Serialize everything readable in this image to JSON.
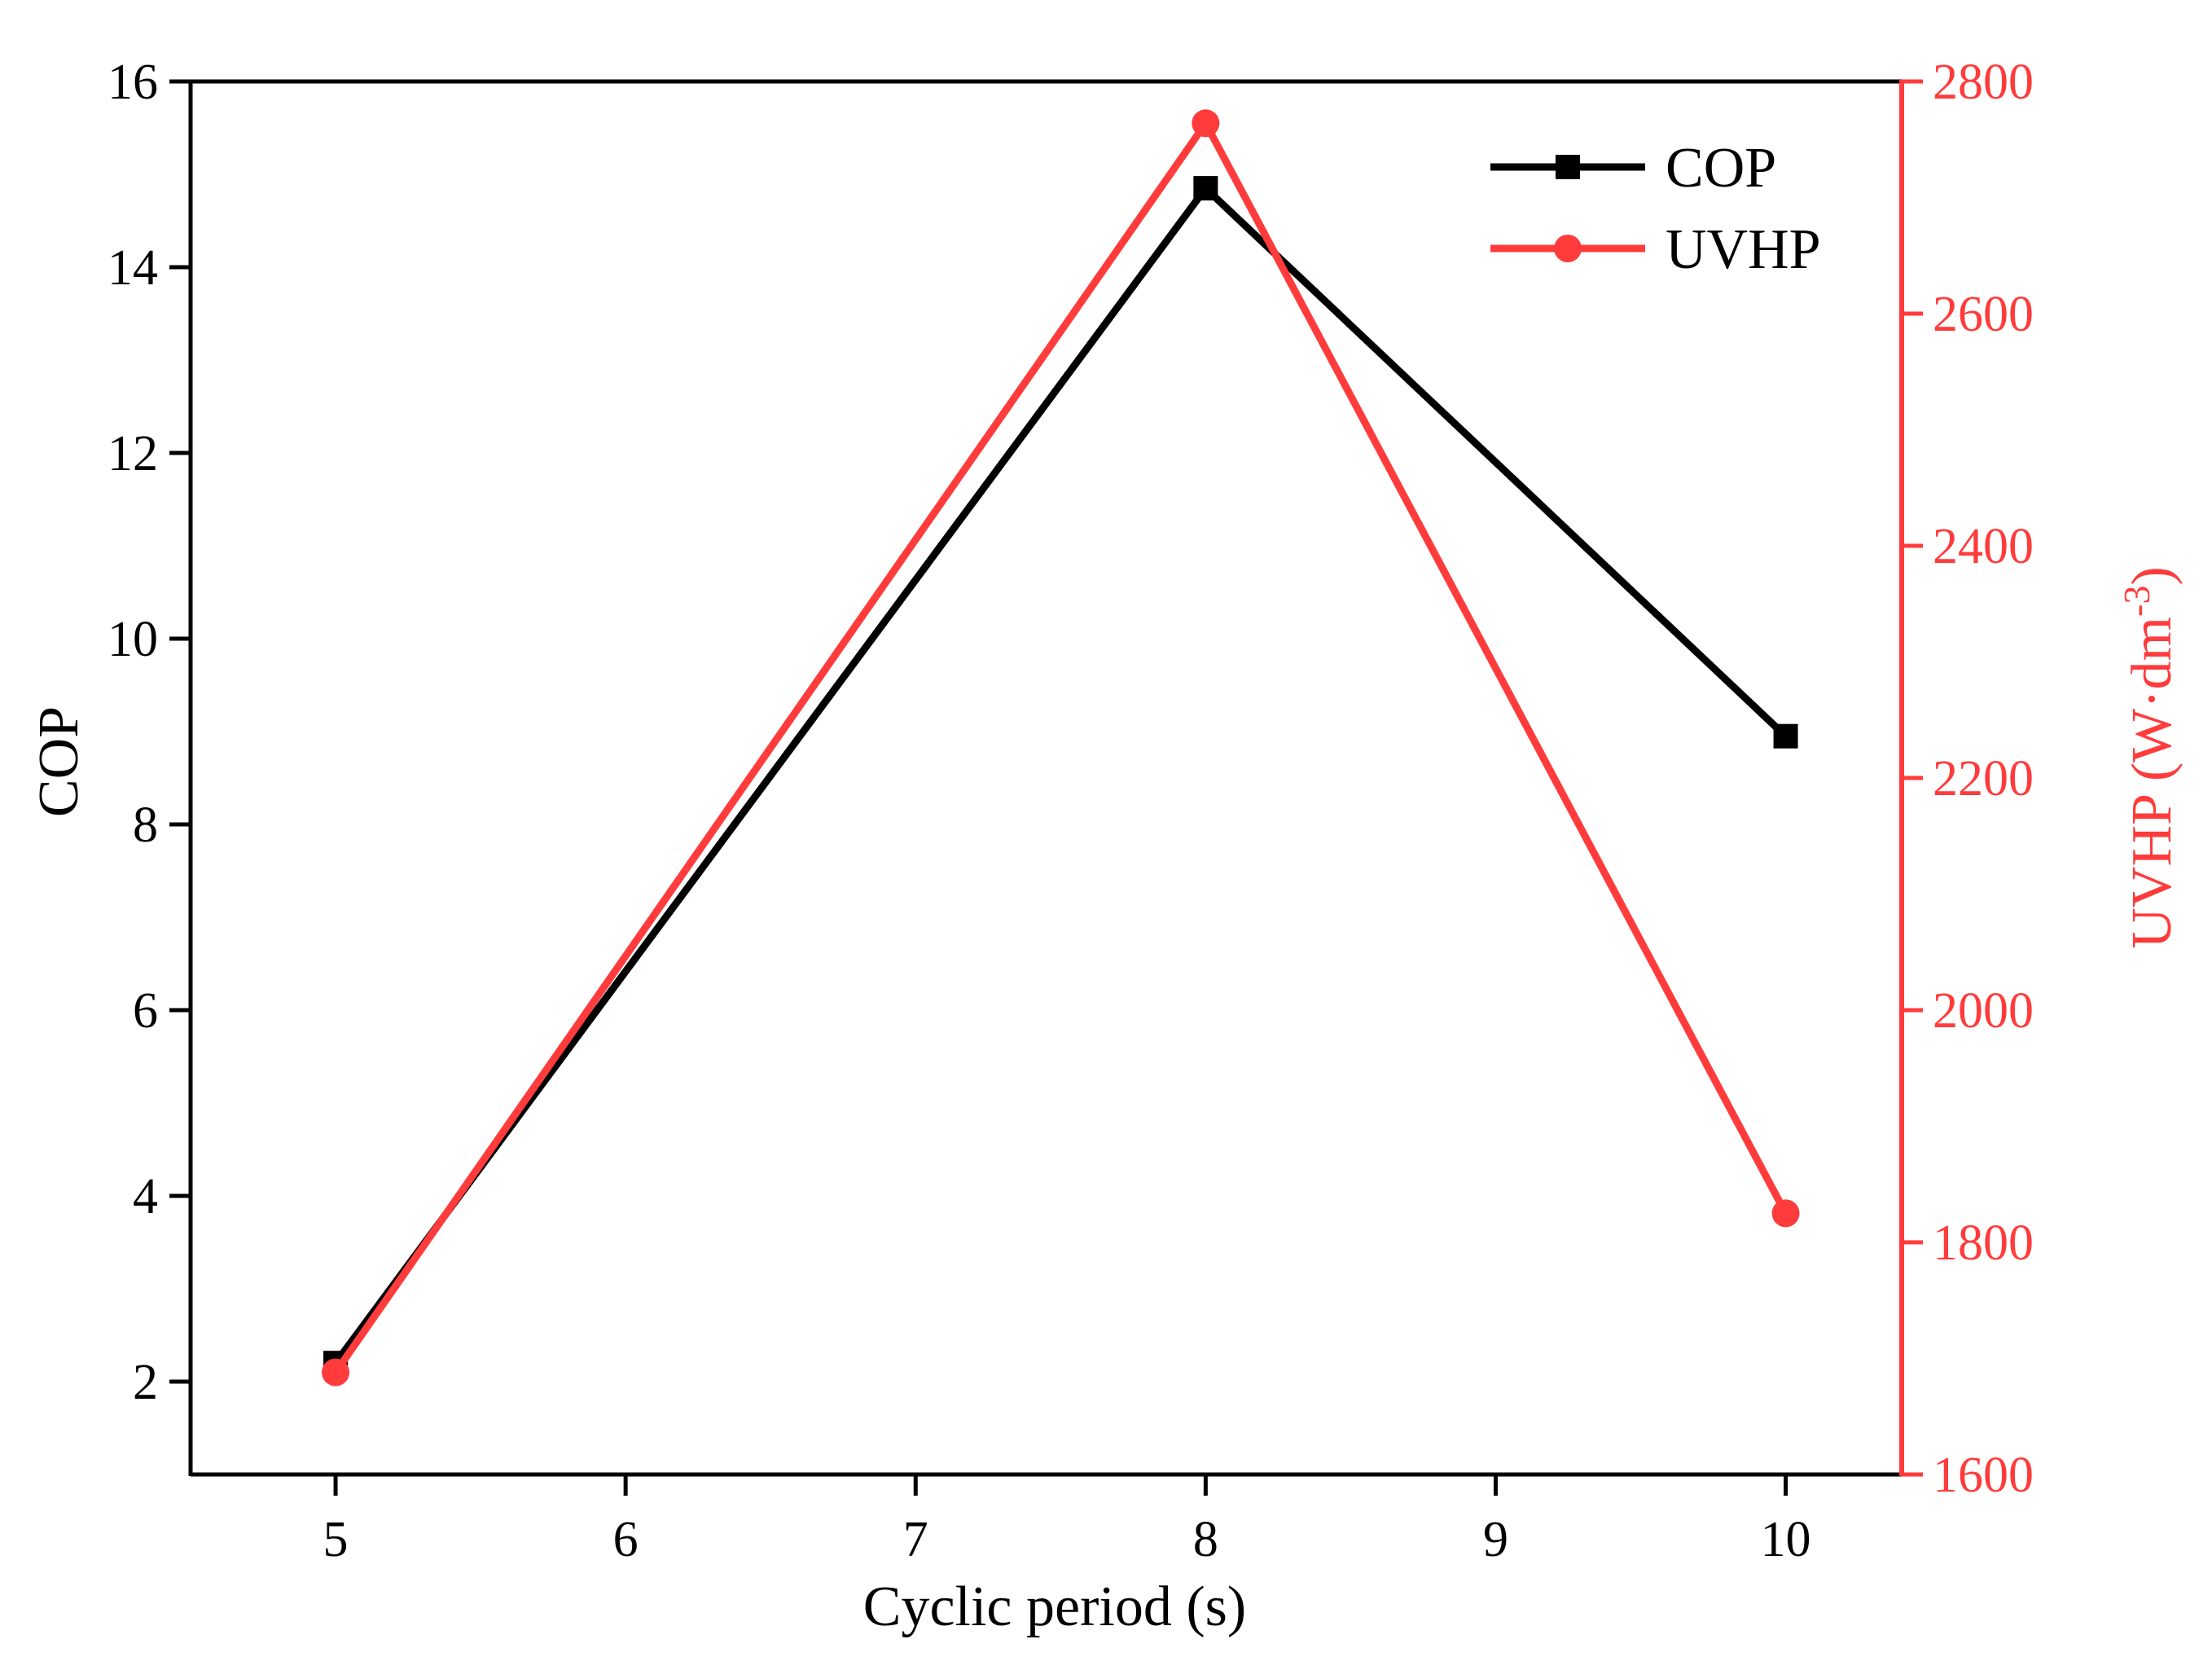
{
  "chart_data": {
    "type": "line",
    "title": "",
    "xlabel": "Cyclic period (s)",
    "ylabel": "COP",
    "y2label": "UVHP (W·dm",
    "y2label_sup": "-3",
    "y2label_close": ")",
    "xlim": [
      4.5,
      10.4
    ],
    "ylim": [
      1,
      16
    ],
    "y2lim": [
      1600,
      2800
    ],
    "x_ticks": [
      5,
      6,
      7,
      8,
      9,
      10
    ],
    "y_ticks": [
      2,
      4,
      6,
      8,
      10,
      12,
      14,
      16
    ],
    "y2_ticks": [
      1600,
      1800,
      2000,
      2200,
      2400,
      2600,
      2800
    ],
    "legend_position": "top-right",
    "series": [
      {
        "name": "COP",
        "axis": "left",
        "color": "#000000",
        "marker": "square",
        "x": [
          5,
          8,
          10
        ],
        "values": [
          2.2,
          14.85,
          8.95
        ]
      },
      {
        "name": "UVHP",
        "axis": "right",
        "color": "#ff3b3b",
        "marker": "circle",
        "x": [
          5,
          8,
          10
        ],
        "values": [
          1688,
          2764,
          1825
        ]
      }
    ]
  }
}
